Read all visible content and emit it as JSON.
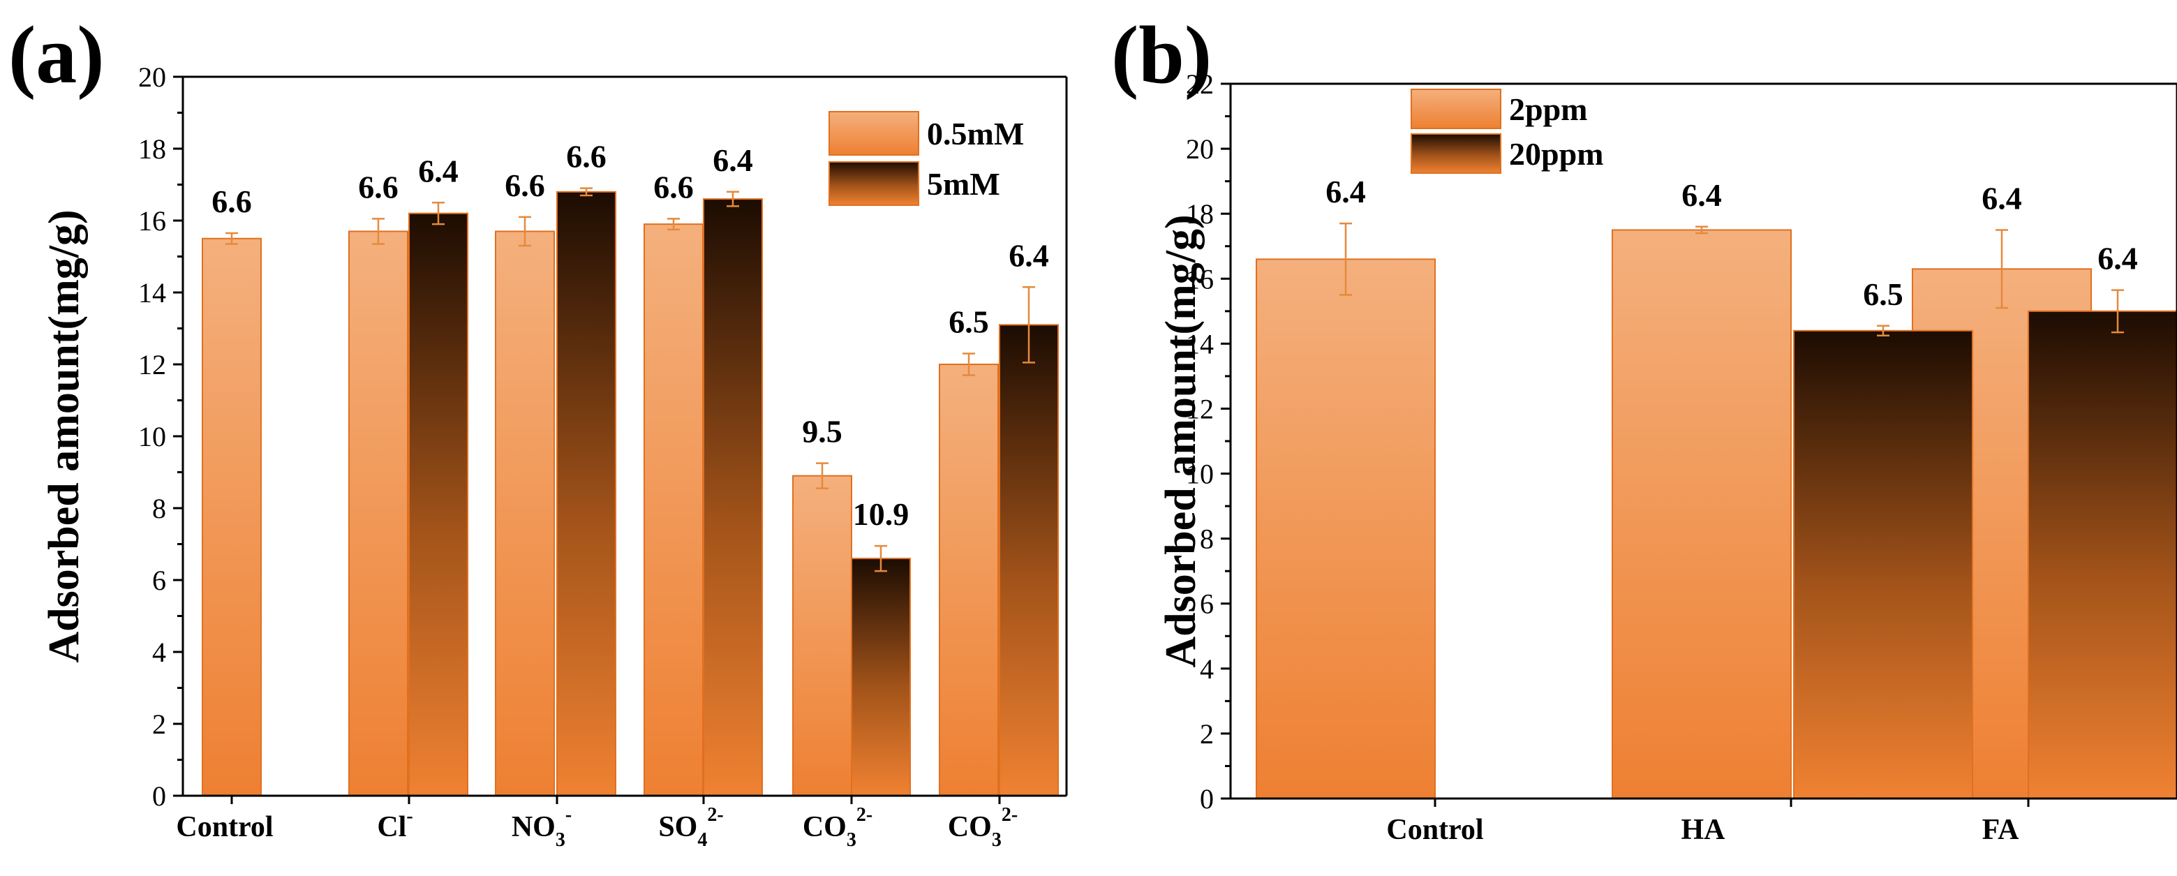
{
  "figure": {
    "panels": [
      "(a)",
      "(b)"
    ]
  },
  "colors": {
    "light_top": "#f4b07d",
    "light_bottom": "#ee8032",
    "dark_top": "#1c0c02",
    "dark_bottom": "#f08232",
    "bar_edge": "#e07020",
    "error_bar": "#e58a3c",
    "axis": "#000000"
  },
  "chart_data": [
    {
      "panel_label": "(a)",
      "type": "bar",
      "ylabel": "Adsorbed amount(mg/g)",
      "xlabel": "",
      "ylim": [
        0,
        20
      ],
      "yticks": [
        "0",
        "2",
        "4",
        "6",
        "8",
        "10",
        "12",
        "14",
        "16",
        "18",
        "20"
      ],
      "categories": [
        {
          "base": "Control",
          "sup": "",
          "sub": ""
        },
        {
          "base": "Cl",
          "sup": "-",
          "sub": ""
        },
        {
          "base": "NO",
          "sub": "3",
          "sup": "-"
        },
        {
          "base": "SO",
          "sub": "4",
          "sup": "2-"
        },
        {
          "base": "CO",
          "sub": "3",
          "sup": "2-"
        },
        {
          "base": "CO",
          "sub": "3",
          "sup": "2-"
        }
      ],
      "legend": {
        "position": "top-right",
        "entries": [
          "0.5mM",
          "5mM"
        ]
      },
      "series": [
        {
          "name": "0.5mM",
          "values": [
            15.5,
            15.7,
            15.7,
            15.9,
            8.9,
            12.0
          ],
          "errors": [
            0.15,
            0.35,
            0.4,
            0.15,
            0.35,
            0.3
          ],
          "labels": [
            "6.6",
            "6.6",
            "6.6",
            "6.6",
            "9.5",
            "6.5"
          ]
        },
        {
          "name": "5mM",
          "values": [
            null,
            16.2,
            16.8,
            16.6,
            6.6,
            13.1
          ],
          "errors": [
            null,
            0.3,
            0.1,
            0.2,
            0.35,
            1.05
          ],
          "labels": [
            "",
            "6.4",
            "6.6",
            "6.4",
            "10.9",
            "6.4"
          ]
        }
      ]
    },
    {
      "panel_label": "(b)",
      "type": "bar",
      "ylabel": "Adsorbed amount(mg/g)",
      "xlabel": "",
      "ylim": [
        0,
        22
      ],
      "yticks": [
        "0",
        "2",
        "4",
        "6",
        "8",
        "10",
        "12",
        "14",
        "16",
        "18",
        "20",
        "22"
      ],
      "categories": [
        {
          "base": "Control",
          "sup": "",
          "sub": ""
        },
        {
          "base": "HA",
          "sup": "",
          "sub": ""
        },
        {
          "base": "FA",
          "sup": "",
          "sub": ""
        }
      ],
      "legend": {
        "position": "top-left",
        "entries": [
          "2ppm",
          "20ppm"
        ]
      },
      "series": [
        {
          "name": "2ppm",
          "values": [
            16.6,
            17.5,
            16.3
          ],
          "errors": [
            1.1,
            0.1,
            1.2
          ],
          "labels": [
            "6.4",
            "6.4",
            "6.4"
          ]
        },
        {
          "name": "20ppm",
          "values": [
            null,
            14.4,
            15.0
          ],
          "errors": [
            null,
            0.15,
            0.65
          ],
          "labels": [
            "",
            "6.5",
            "6.4"
          ]
        }
      ]
    }
  ]
}
